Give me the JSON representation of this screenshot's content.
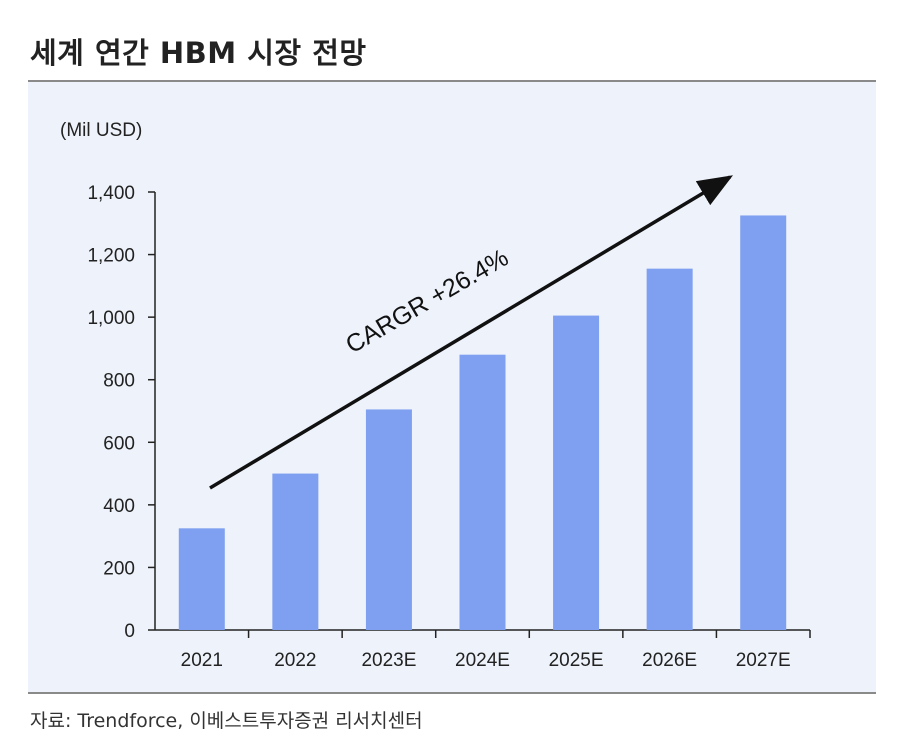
{
  "title": "세계 연간 HBM 시장 전망",
  "source": "자료: Trendforce, 이베스트투자증권 리서치센터",
  "chart_data": {
    "type": "bar",
    "unit_label": "(Mil USD)",
    "categories": [
      "2021",
      "2022",
      "2023E",
      "2024E",
      "2025E",
      "2026E",
      "2027E"
    ],
    "values": [
      325,
      500,
      705,
      880,
      1005,
      1155,
      1325
    ],
    "ylim": [
      0,
      1400
    ],
    "yticks": [
      0,
      200,
      400,
      600,
      800,
      1000,
      1200,
      1400
    ],
    "ytick_labels": [
      "0",
      "200",
      "400",
      "600",
      "800",
      "1,000",
      "1,200",
      "1,400"
    ],
    "annotation": "CARGR +26.4%",
    "bar_color": "#7f9ff0",
    "grid": false
  }
}
